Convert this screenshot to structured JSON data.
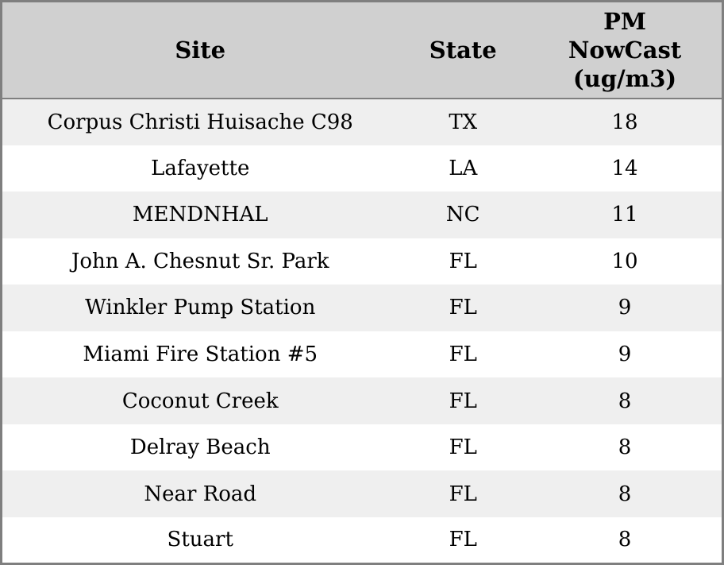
{
  "chart_data": {
    "type": "table",
    "title": "",
    "columns": [
      "Site",
      "State",
      "PM NowCast (ug/m3)"
    ],
    "pm_header_lines": [
      "PM",
      "NowCast",
      "(ug/m3)"
    ],
    "rows": [
      [
        "Corpus Christi Huisache C98",
        "TX",
        18
      ],
      [
        "Lafayette",
        "LA",
        14
      ],
      [
        "MENDNHAL",
        "NC",
        11
      ],
      [
        "John A. Chesnut Sr. Park",
        "FL",
        10
      ],
      [
        "Winkler Pump Station",
        "FL",
        9
      ],
      [
        "Miami Fire Station #5",
        "FL",
        9
      ],
      [
        "Coconut Creek",
        "FL",
        8
      ],
      [
        "Delray Beach",
        "FL",
        8
      ],
      [
        "Near Road",
        "FL",
        8
      ],
      [
        "Stuart",
        "FL",
        8
      ]
    ],
    "layout": {
      "row_alternating": true,
      "grid": "off",
      "legend": "none",
      "header_position": "top"
    }
  },
  "colors": {
    "header_bg": "#d0d0d0",
    "row_alt_bg": "#efefef",
    "row_bg": "#ffffff",
    "border": "#7f7f7f",
    "text": "#000000"
  }
}
